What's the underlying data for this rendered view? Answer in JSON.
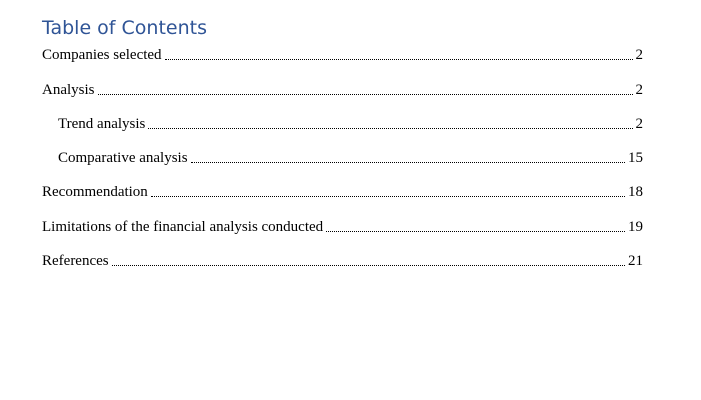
{
  "toc": {
    "title": "Table of Contents",
    "entries": [
      {
        "label": "Companies selected",
        "page": "2",
        "level": 1
      },
      {
        "label": "Analysis",
        "page": "2",
        "level": 1
      },
      {
        "label": "Trend analysis",
        "page": "2",
        "level": 2
      },
      {
        "label": "Comparative analysis",
        "page": "15",
        "level": 2
      },
      {
        "label": "Recommendation",
        "page": "18",
        "level": 1
      },
      {
        "label": "Limitations of the financial analysis conducted",
        "page": "19",
        "level": 1
      },
      {
        "label": "References",
        "page": "21",
        "level": 1
      }
    ],
    "title_color": "#2f5496"
  }
}
